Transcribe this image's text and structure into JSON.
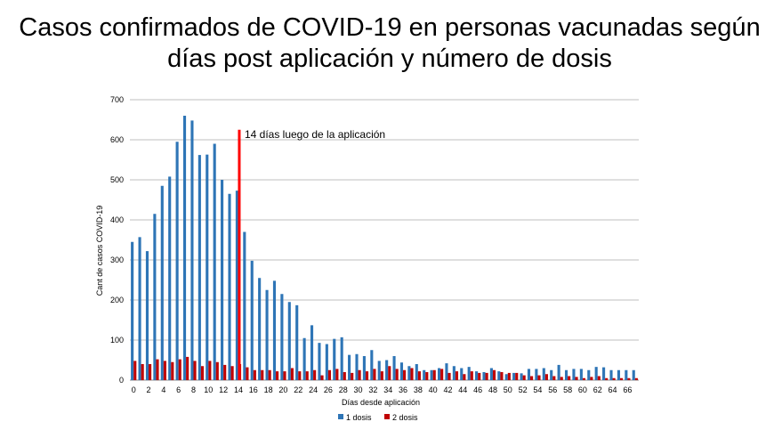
{
  "chart_data": {
    "type": "bar",
    "title_line1": "Casos confirmados de COVID-19 en personas vacunadas según",
    "title_line2": "días post aplicación y número de dosis",
    "xlabel": "Días desde aplicación",
    "ylabel": "Cant de casos COVID-19",
    "ylim": [
      0,
      700
    ],
    "yticks": [
      0,
      100,
      200,
      300,
      400,
      500,
      600,
      700
    ],
    "xtick_labels": [
      "0",
      "2",
      "4",
      "6",
      "8",
      "10",
      "12",
      "14",
      "16",
      "18",
      "20",
      "22",
      "24",
      "26",
      "28",
      "30",
      "32",
      "34",
      "36",
      "38",
      "40",
      "42",
      "44",
      "46",
      "48",
      "50",
      "52",
      "54",
      "56",
      "58",
      "60",
      "62",
      "64",
      "66"
    ],
    "categories": [
      0,
      1,
      2,
      3,
      4,
      5,
      6,
      7,
      8,
      9,
      10,
      11,
      12,
      13,
      14,
      15,
      16,
      17,
      18,
      19,
      20,
      21,
      22,
      23,
      24,
      25,
      26,
      27,
      28,
      29,
      30,
      31,
      32,
      33,
      34,
      35,
      36,
      37,
      38,
      39,
      40,
      41,
      42,
      43,
      44,
      45,
      46,
      47,
      48,
      49,
      50,
      51,
      52,
      53,
      54,
      55,
      56,
      57,
      58,
      59,
      60,
      61,
      62,
      63,
      64,
      65,
      66,
      67
    ],
    "series": [
      {
        "name": "1 dosis",
        "color": "#2e75b6",
        "values": [
          345,
          357,
          322,
          415,
          485,
          508,
          595,
          660,
          648,
          562,
          563,
          590,
          500,
          465,
          473,
          370,
          298,
          255,
          225,
          248,
          215,
          195,
          187,
          105,
          137,
          93,
          90,
          103,
          107,
          63,
          65,
          60,
          75,
          48,
          50,
          60,
          44,
          35,
          40,
          25,
          25,
          30,
          42,
          35,
          30,
          33,
          22,
          20,
          30,
          22,
          15,
          18,
          17,
          28,
          28,
          30,
          25,
          38,
          25,
          28,
          28,
          25,
          33,
          32,
          25,
          25,
          25,
          25
        ]
      },
      {
        "name": "2 dosis",
        "color": "#c00000",
        "values": [
          48,
          40,
          40,
          52,
          48,
          45,
          52,
          58,
          48,
          35,
          48,
          45,
          38,
          35,
          40,
          32,
          25,
          25,
          25,
          22,
          22,
          30,
          22,
          22,
          25,
          12,
          25,
          28,
          20,
          18,
          25,
          22,
          28,
          22,
          35,
          28,
          25,
          30,
          22,
          20,
          25,
          28,
          18,
          22,
          15,
          22,
          18,
          18,
          25,
          20,
          18,
          18,
          12,
          10,
          12,
          15,
          10,
          8,
          10,
          8,
          5,
          8,
          10,
          5,
          5,
          5,
          5,
          5
        ]
      }
    ],
    "annotation": {
      "text": "14 días luego de la aplicación",
      "x_day": 14,
      "y_top": 625,
      "color": "#ff0000"
    },
    "legend_position": "bottom",
    "grid": true
  }
}
